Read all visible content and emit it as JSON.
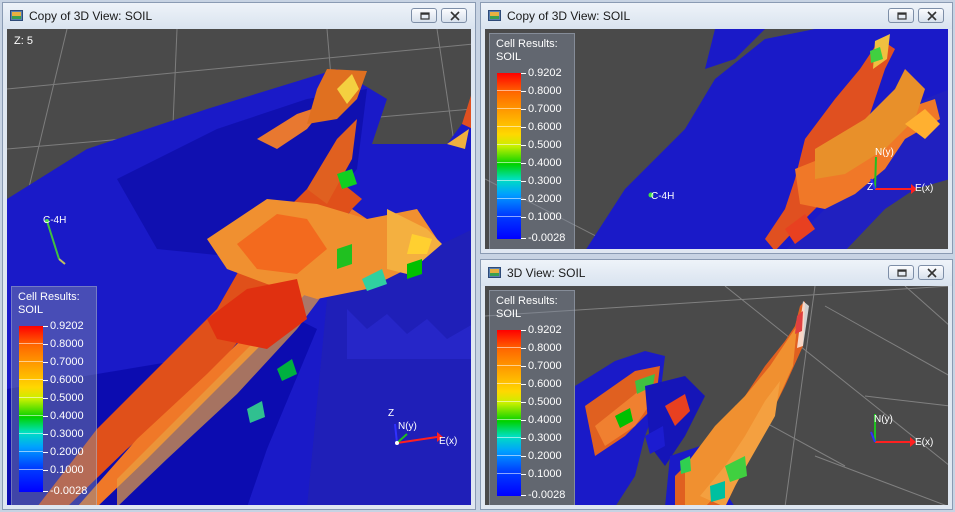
{
  "colors": {
    "accent_titlebar": "#dfe7f1",
    "viewport_bg": "#4a4a4a",
    "min_color": "#0000ff",
    "max_color": "#ff0000"
  },
  "windows": [
    {
      "title": "Copy of 3D View: SOIL",
      "z_label": "Z: 5",
      "legend": {
        "title_line1": "Cell Results:",
        "title_line2": "SOIL",
        "ticks": [
          "0.9202",
          "0.8000",
          "0.7000",
          "0.6000",
          "0.5000",
          "0.4000",
          "0.3000",
          "0.2000",
          "0.1000",
          "-0.0028"
        ]
      },
      "well_label": "C-4H",
      "axes": {
        "z": "Z",
        "n": "N(y)",
        "e": "E(x)"
      }
    },
    {
      "title": "Copy of 3D View: SOIL",
      "legend": {
        "title_line1": "Cell Results:",
        "title_line2": "SOIL",
        "ticks": [
          "0.9202",
          "0.8000",
          "0.7000",
          "0.6000",
          "0.5000",
          "0.4000",
          "0.3000",
          "0.2000",
          "0.1000",
          "-0.0028"
        ]
      },
      "well_label": "C-4H",
      "axes": {
        "z": "Z",
        "n": "N(y)",
        "e": "E(x)"
      }
    },
    {
      "title": "3D View: SOIL",
      "legend": {
        "title_line1": "Cell Results:",
        "title_line2": "SOIL",
        "ticks": [
          "0.9202",
          "0.8000",
          "0.7000",
          "0.6000",
          "0.5000",
          "0.4000",
          "0.3000",
          "0.2000",
          "0.1000",
          "-0.0028"
        ]
      },
      "axes": {
        "n": "N(y)",
        "e": "E(x)"
      }
    }
  ]
}
